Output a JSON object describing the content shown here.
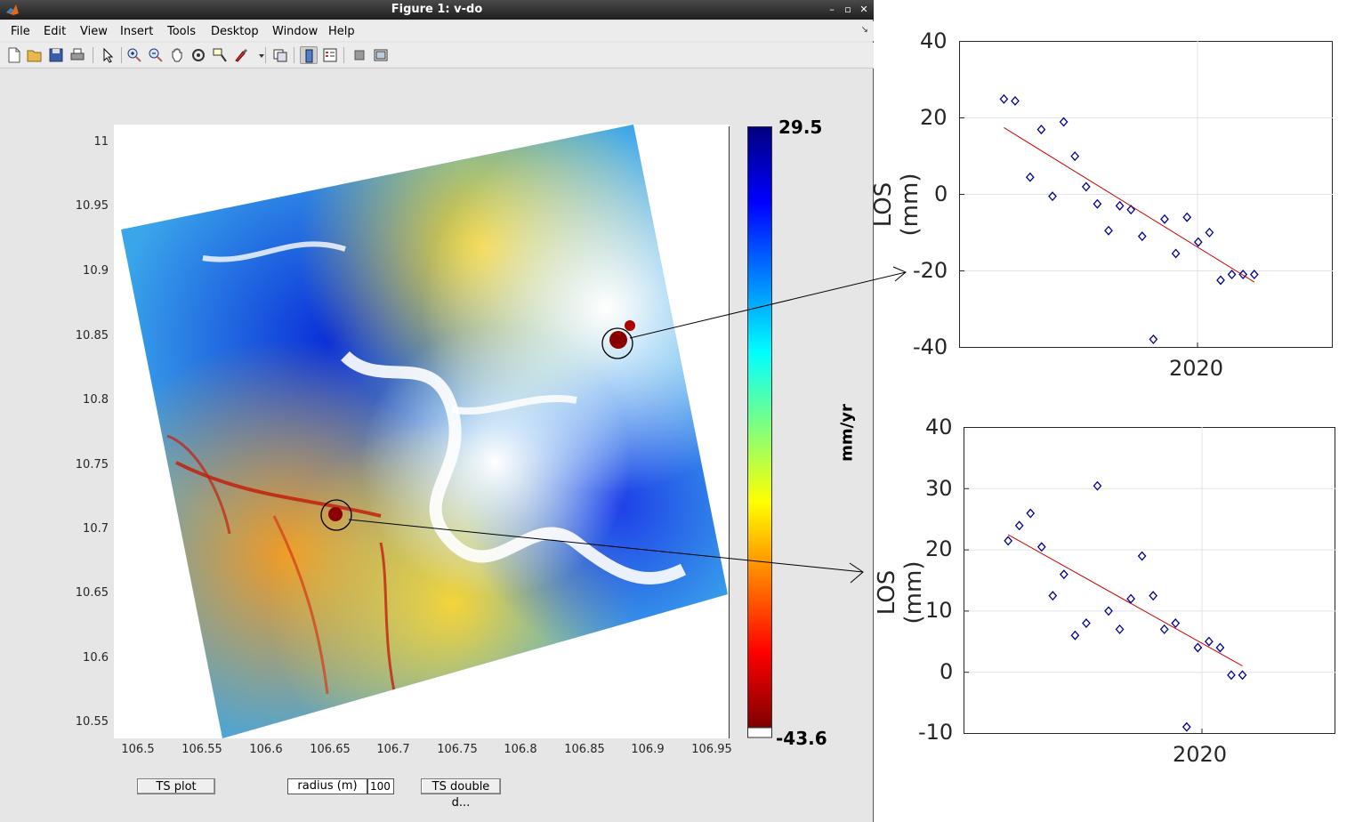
{
  "window": {
    "title": "Figure 1: v-do",
    "controls": [
      "–",
      "▫",
      "✕"
    ]
  },
  "menu": {
    "items": [
      "File",
      "Edit",
      "View",
      "Insert",
      "Tools",
      "Desktop",
      "Window",
      "Help"
    ]
  },
  "toolbar": {
    "icons": [
      "new-figure-icon",
      "open-file-icon",
      "save-icon",
      "print-icon",
      "pointer-icon",
      "zoom-in-icon",
      "zoom-out-icon",
      "pan-icon",
      "rotate-icon",
      "data-cursor-icon",
      "brush-icon",
      "link-plot-icon",
      "colorbar-icon",
      "legend-icon",
      "hide-plot-tools-icon",
      "show-plot-tools-icon"
    ]
  },
  "map": {
    "y_ticks": [
      "11",
      "10.95",
      "10.9",
      "10.85",
      "10.8",
      "10.75",
      "10.7",
      "10.65",
      "10.6",
      "10.55"
    ],
    "x_ticks": [
      "106.5",
      "106.55",
      "106.6",
      "106.65",
      "106.7",
      "106.75",
      "106.8",
      "106.85",
      "106.9",
      "106.95"
    ],
    "colorbar": {
      "max_label": "29.5",
      "min_label": "-43.6",
      "unit_label": "mm/yr",
      "colormap": [
        "#00007f",
        "#0000ff",
        "#007fff",
        "#00ffff",
        "#7fff7f",
        "#ffff00",
        "#ff7f00",
        "#ff0000",
        "#7f0000"
      ],
      "nan_color": "#ffffff"
    }
  },
  "controls": {
    "ts_plot_label": "TS plot",
    "radius_label": "radius (m)",
    "radius_value": "100",
    "ts_double_label": "TS double d..."
  },
  "chart_data": [
    {
      "type": "scatter",
      "ylabel": "LOS (mm)",
      "ylim": [
        -40,
        40
      ],
      "y_ticks": [
        "40",
        "20",
        "0",
        "-20",
        "-40"
      ],
      "x_tick_labels": [
        "2020"
      ],
      "grid": true,
      "marker": "diamond",
      "marker_color": "#00008b",
      "trend_color": "#cc0000",
      "points_x": [
        0.12,
        0.15,
        0.19,
        0.22,
        0.25,
        0.28,
        0.31,
        0.34,
        0.37,
        0.4,
        0.43,
        0.46,
        0.49,
        0.52,
        0.55,
        0.58,
        0.61,
        0.64,
        0.67,
        0.7,
        0.73,
        0.76,
        0.79
      ],
      "points_y": [
        25,
        24.5,
        4.5,
        17,
        -0.5,
        19,
        10,
        2,
        -2.5,
        -9.5,
        -3,
        -4,
        -11,
        -38,
        -6.5,
        -15.5,
        -6,
        -12.5,
        -10,
        -22.5,
        -21,
        -21,
        -21
      ],
      "trend": {
        "y_start": 17.5,
        "y_end": -23
      }
    },
    {
      "type": "scatter",
      "ylabel": "LOS (mm)",
      "ylim": [
        -10,
        40
      ],
      "y_ticks": [
        "40",
        "30",
        "20",
        "10",
        "0",
        "-10"
      ],
      "x_tick_labels": [
        "2020"
      ],
      "grid": true,
      "marker": "diamond",
      "marker_color": "#00008b",
      "trend_color": "#cc0000",
      "points_x": [
        0.12,
        0.15,
        0.18,
        0.21,
        0.24,
        0.27,
        0.3,
        0.33,
        0.36,
        0.39,
        0.42,
        0.45,
        0.48,
        0.51,
        0.54,
        0.57,
        0.6,
        0.63,
        0.66,
        0.69,
        0.72,
        0.75
      ],
      "points_y": [
        21.5,
        24,
        26,
        20.5,
        12.5,
        16,
        6,
        8,
        30.5,
        10,
        7,
        12,
        19,
        12.5,
        7,
        8,
        -9,
        4,
        5,
        4,
        -0.5,
        -0.5
      ],
      "trend": {
        "y_start": 22.5,
        "y_end": 1
      }
    }
  ]
}
